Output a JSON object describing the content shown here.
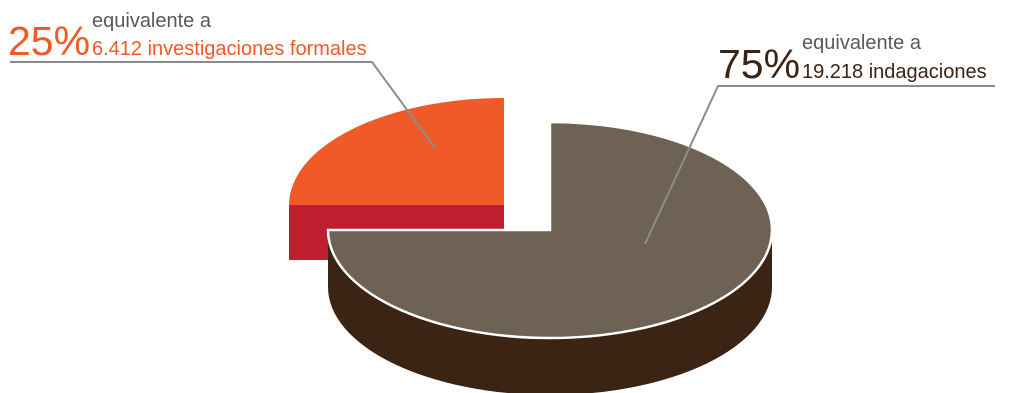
{
  "chart_data": {
    "type": "pie",
    "slices": [
      {
        "percent_label": "25%",
        "prefix": "equivalente a",
        "label": "6.412 investigaciones formales",
        "percent": 25,
        "count": 6412,
        "color": "#f05a28",
        "side_color": "#be1e2d",
        "text_color": "#f05a28"
      },
      {
        "percent_label": "75%",
        "prefix": "equivalente a",
        "label": "19.218 indagaciones",
        "percent": 75,
        "count": 19218,
        "color": "#6e6255",
        "side_color": "#3c2415",
        "text_color": "#3c2415"
      }
    ],
    "leader_line_color": "#8a8c8e",
    "prefix_color": "#58595b"
  }
}
